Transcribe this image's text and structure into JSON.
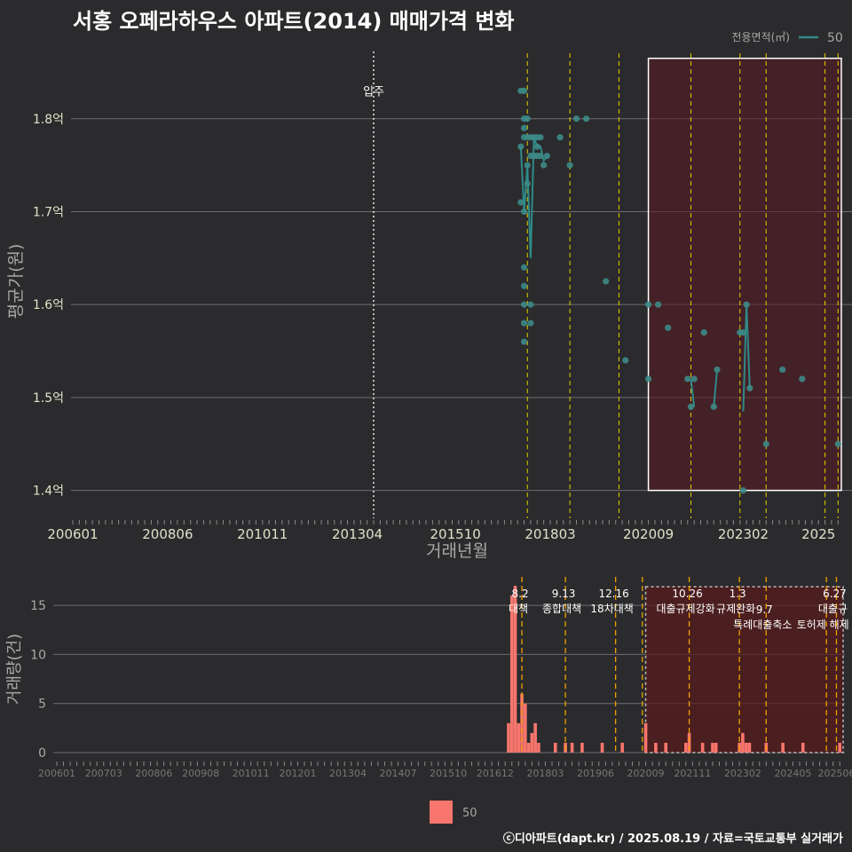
{
  "title": "서홍 오페라하우스 아파트(2014) 매매가격 변화",
  "legend_top": {
    "title": "전용면적(㎡)",
    "label": "50",
    "color": "#2e8a88"
  },
  "legend_bottom": {
    "label": "50",
    "color": "#f8766d"
  },
  "footer": "ⓒ디아파트(dapt.kr) / 2025.08.19 / 자료=국토교통부 실거래가",
  "chart_data": [
    {
      "type": "line",
      "title": "서홍 오페라하우스 아파트(2014) 매매가격 변화",
      "xlabel": "거래년월",
      "ylabel": "평균가(원)",
      "ylim": [
        1.37,
        1.88
      ],
      "y_ticks": [
        1.4,
        1.5,
        1.6,
        1.7,
        1.8
      ],
      "y_tick_labels": [
        "1.4억",
        "1.5억",
        "1.6억",
        "1.7억",
        "1.8억"
      ],
      "x_tick_labels": [
        "200601",
        "200806",
        "201011",
        "201304",
        "201510",
        "201803",
        "202009",
        "202302",
        "2025"
      ],
      "series": [
        {
          "name": "50",
          "points": [
            [
              "2017-06",
              1.83
            ],
            [
              "2017-06",
              1.77
            ],
            [
              "2017-06",
              1.71
            ],
            [
              "2017-07",
              1.83
            ],
            [
              "2017-07",
              1.8
            ],
            [
              "2017-07",
              1.79
            ],
            [
              "2017-07",
              1.78
            ],
            [
              "2017-07",
              1.7
            ],
            [
              "2017-07",
              1.64
            ],
            [
              "2017-07",
              1.62
            ],
            [
              "2017-07",
              1.6
            ],
            [
              "2017-07",
              1.58
            ],
            [
              "2017-07",
              1.56
            ],
            [
              "2017-08",
              1.8
            ],
            [
              "2017-08",
              1.78
            ],
            [
              "2017-08",
              1.75
            ],
            [
              "2017-08",
              1.73
            ],
            [
              "2017-09",
              1.78
            ],
            [
              "2017-09",
              1.76
            ],
            [
              "2017-09",
              1.6
            ],
            [
              "2017-09",
              1.58
            ],
            [
              "2017-10",
              1.78
            ],
            [
              "2017-10",
              1.76
            ],
            [
              "2017-11",
              1.78
            ],
            [
              "2017-11",
              1.77
            ],
            [
              "2017-11",
              1.76
            ],
            [
              "2017-12",
              1.78
            ],
            [
              "2017-12",
              1.76
            ],
            [
              "2018-01",
              1.75
            ],
            [
              "2018-02",
              1.76
            ],
            [
              "2018-06",
              1.78
            ],
            [
              "2018-09",
              1.75
            ],
            [
              "2018-11",
              1.8
            ],
            [
              "2019-02",
              1.8
            ],
            [
              "2019-08",
              1.625
            ],
            [
              "2020-02",
              1.54
            ],
            [
              "2020-09",
              1.6
            ],
            [
              "2020-09",
              1.52
            ],
            [
              "2020-12",
              1.6
            ],
            [
              "2021-03",
              1.575
            ],
            [
              "2021-09",
              1.52
            ],
            [
              "2021-10",
              1.49
            ],
            [
              "2021-11",
              1.52
            ],
            [
              "2022-02",
              1.57
            ],
            [
              "2022-05",
              1.49
            ],
            [
              "2022-06",
              1.53
            ],
            [
              "2023-01",
              1.57
            ],
            [
              "2023-02",
              1.57
            ],
            [
              "2023-02",
              1.4
            ],
            [
              "2023-03",
              1.6
            ],
            [
              "2023-04",
              1.51
            ],
            [
              "2023-09",
              1.45
            ],
            [
              "2024-02",
              1.53
            ],
            [
              "2024-08",
              1.52
            ],
            [
              "2025-07",
              1.45
            ]
          ],
          "line_path": [
            [
              "2017-06",
              1.77
            ],
            [
              "2017-07",
              1.7
            ],
            [
              "2017-08",
              1.75
            ],
            [
              "2017-09",
              1.65
            ],
            [
              "2017-10",
              1.78
            ],
            [
              "2017-11",
              1.77
            ],
            [
              "2017-12",
              1.77
            ],
            [
              "2018-01",
              1.755
            ],
            [
              "2018-02",
              1.76
            ]
          ]
        }
      ],
      "annotations": [
        {
          "x": "2013-09",
          "label": "입주",
          "style": "dotted"
        }
      ],
      "policy_lines": [
        "2017-08",
        "2018-09",
        "2019-12",
        "2021-10",
        "2023-01",
        "2023-09",
        "2025-03",
        "2025-07"
      ],
      "highlight": {
        "from": "2020-09",
        "to": "2025-08",
        "ymin": 1.4,
        "ymax": 1.865
      }
    },
    {
      "type": "bar",
      "ylabel": "거래량(건)",
      "ylim": [
        0,
        17
      ],
      "y_ticks": [
        0,
        5,
        10,
        15
      ],
      "x_tick_labels": [
        "200601",
        "200703",
        "200806",
        "200908",
        "201011",
        "201201",
        "201304",
        "201407",
        "201510",
        "201612",
        "201803",
        "201906",
        "202009",
        "202111",
        "202302",
        "202405",
        "202506"
      ],
      "series": [
        {
          "name": "50",
          "values": [
            [
              "2017-04",
              3
            ],
            [
              "2017-05",
              16
            ],
            [
              "2017-06",
              17
            ],
            [
              "2017-07",
              3
            ],
            [
              "2017-08",
              6
            ],
            [
              "2017-09",
              5
            ],
            [
              "2017-10",
              1
            ],
            [
              "2017-11",
              2
            ],
            [
              "2017-12",
              3
            ],
            [
              "2018-01",
              1
            ],
            [
              "2018-06",
              1
            ],
            [
              "2018-09",
              1
            ],
            [
              "2018-11",
              1
            ],
            [
              "2019-02",
              1
            ],
            [
              "2019-08",
              1
            ],
            [
              "2020-02",
              1
            ],
            [
              "2020-09",
              3
            ],
            [
              "2020-12",
              1
            ],
            [
              "2021-03",
              1
            ],
            [
              "2021-09",
              1
            ],
            [
              "2021-10",
              2
            ],
            [
              "2022-02",
              1
            ],
            [
              "2022-05",
              1
            ],
            [
              "2022-06",
              1
            ],
            [
              "2023-01",
              1
            ],
            [
              "2023-02",
              2
            ],
            [
              "2023-03",
              1
            ],
            [
              "2023-04",
              1
            ],
            [
              "2023-09",
              1
            ],
            [
              "2024-02",
              1
            ],
            [
              "2024-08",
              1
            ],
            [
              "2025-07",
              1
            ]
          ]
        }
      ],
      "policy_events": [
        {
          "x": "2017-08",
          "date": "8.2",
          "name": "대책"
        },
        {
          "x": "2018-09",
          "date": "9.13",
          "name": "종합대책"
        },
        {
          "x": "2019-12",
          "date": "12.16",
          "name": "18차대책"
        },
        {
          "x": "2020-08",
          "date": "",
          "name": ""
        },
        {
          "x": "2021-10",
          "date": "10.26",
          "name": "대출규제강화"
        },
        {
          "x": "2023-01",
          "date": "1.3",
          "name": "규제완화"
        },
        {
          "x": "2023-09",
          "date": "9.7",
          "name": "특례대출축소"
        },
        {
          "x": "2025-03",
          "date": "",
          "name": "토허제 해제"
        },
        {
          "x": "2025-06",
          "date": "6.27",
          "name": "대출규"
        }
      ],
      "highlight": {
        "from": "2020-09",
        "to": "2025-08"
      }
    }
  ]
}
